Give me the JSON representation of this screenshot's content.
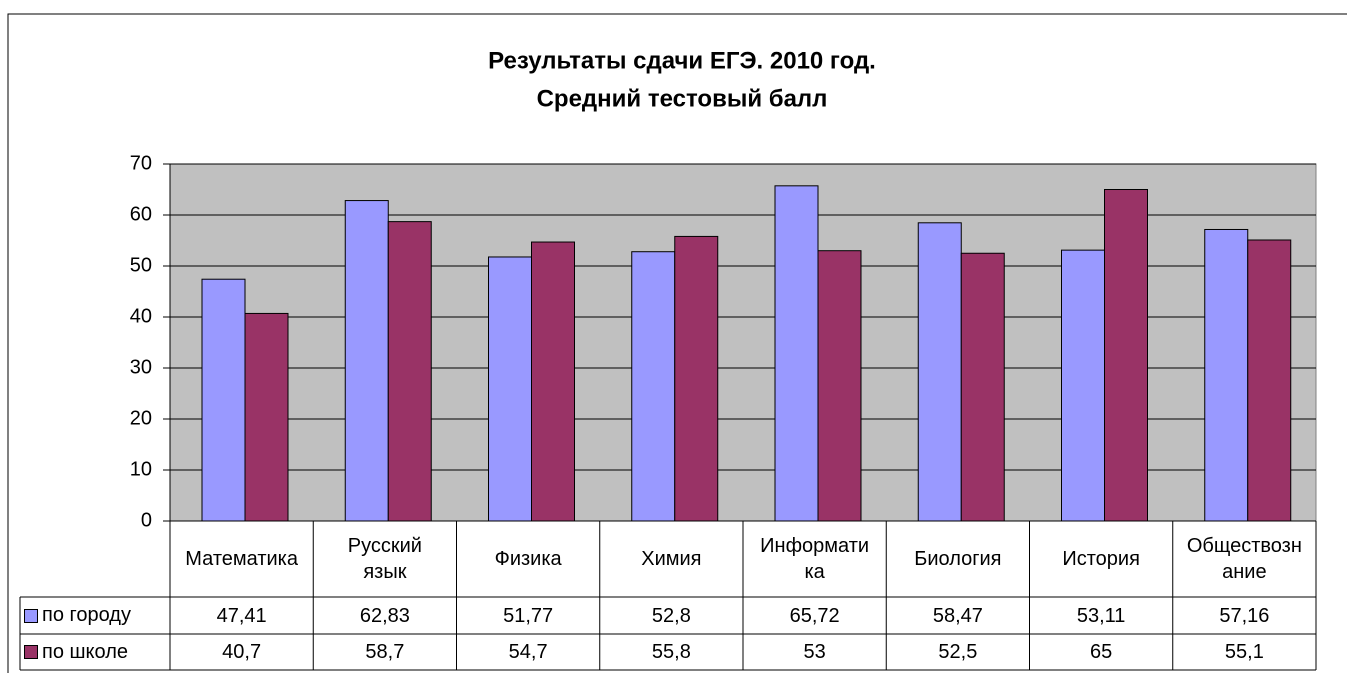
{
  "chart_data": {
    "type": "bar",
    "title": "Результаты сдачи ЕГЭ. 2010 год.",
    "subtitle": "Средний тестовый балл",
    "categories": [
      "Математика",
      "Русский язык",
      "Физика",
      "Химия",
      "Информатика",
      "Биология",
      "История",
      "Обществознание"
    ],
    "series": [
      {
        "name": "по городу",
        "color": "#9999ff",
        "values": [
          47.41,
          62.83,
          51.77,
          52.8,
          65.72,
          58.47,
          53.11,
          57.16
        ],
        "value_labels": [
          "47,41",
          "62,83",
          "51,77",
          "52,8",
          "65,72",
          "58,47",
          "53,11",
          "57,16"
        ]
      },
      {
        "name": "по школе",
        "color": "#993366",
        "values": [
          40.7,
          58.7,
          54.7,
          55.8,
          53,
          52.5,
          65,
          55.1
        ],
        "value_labels": [
          "40,7",
          "58,7",
          "54,7",
          "55,8",
          "53",
          "52,5",
          "65",
          "55,1"
        ]
      }
    ],
    "ylim": [
      0,
      70
    ],
    "yticks": [
      0,
      10,
      20,
      30,
      40,
      50,
      60,
      70
    ],
    "grid": true
  }
}
